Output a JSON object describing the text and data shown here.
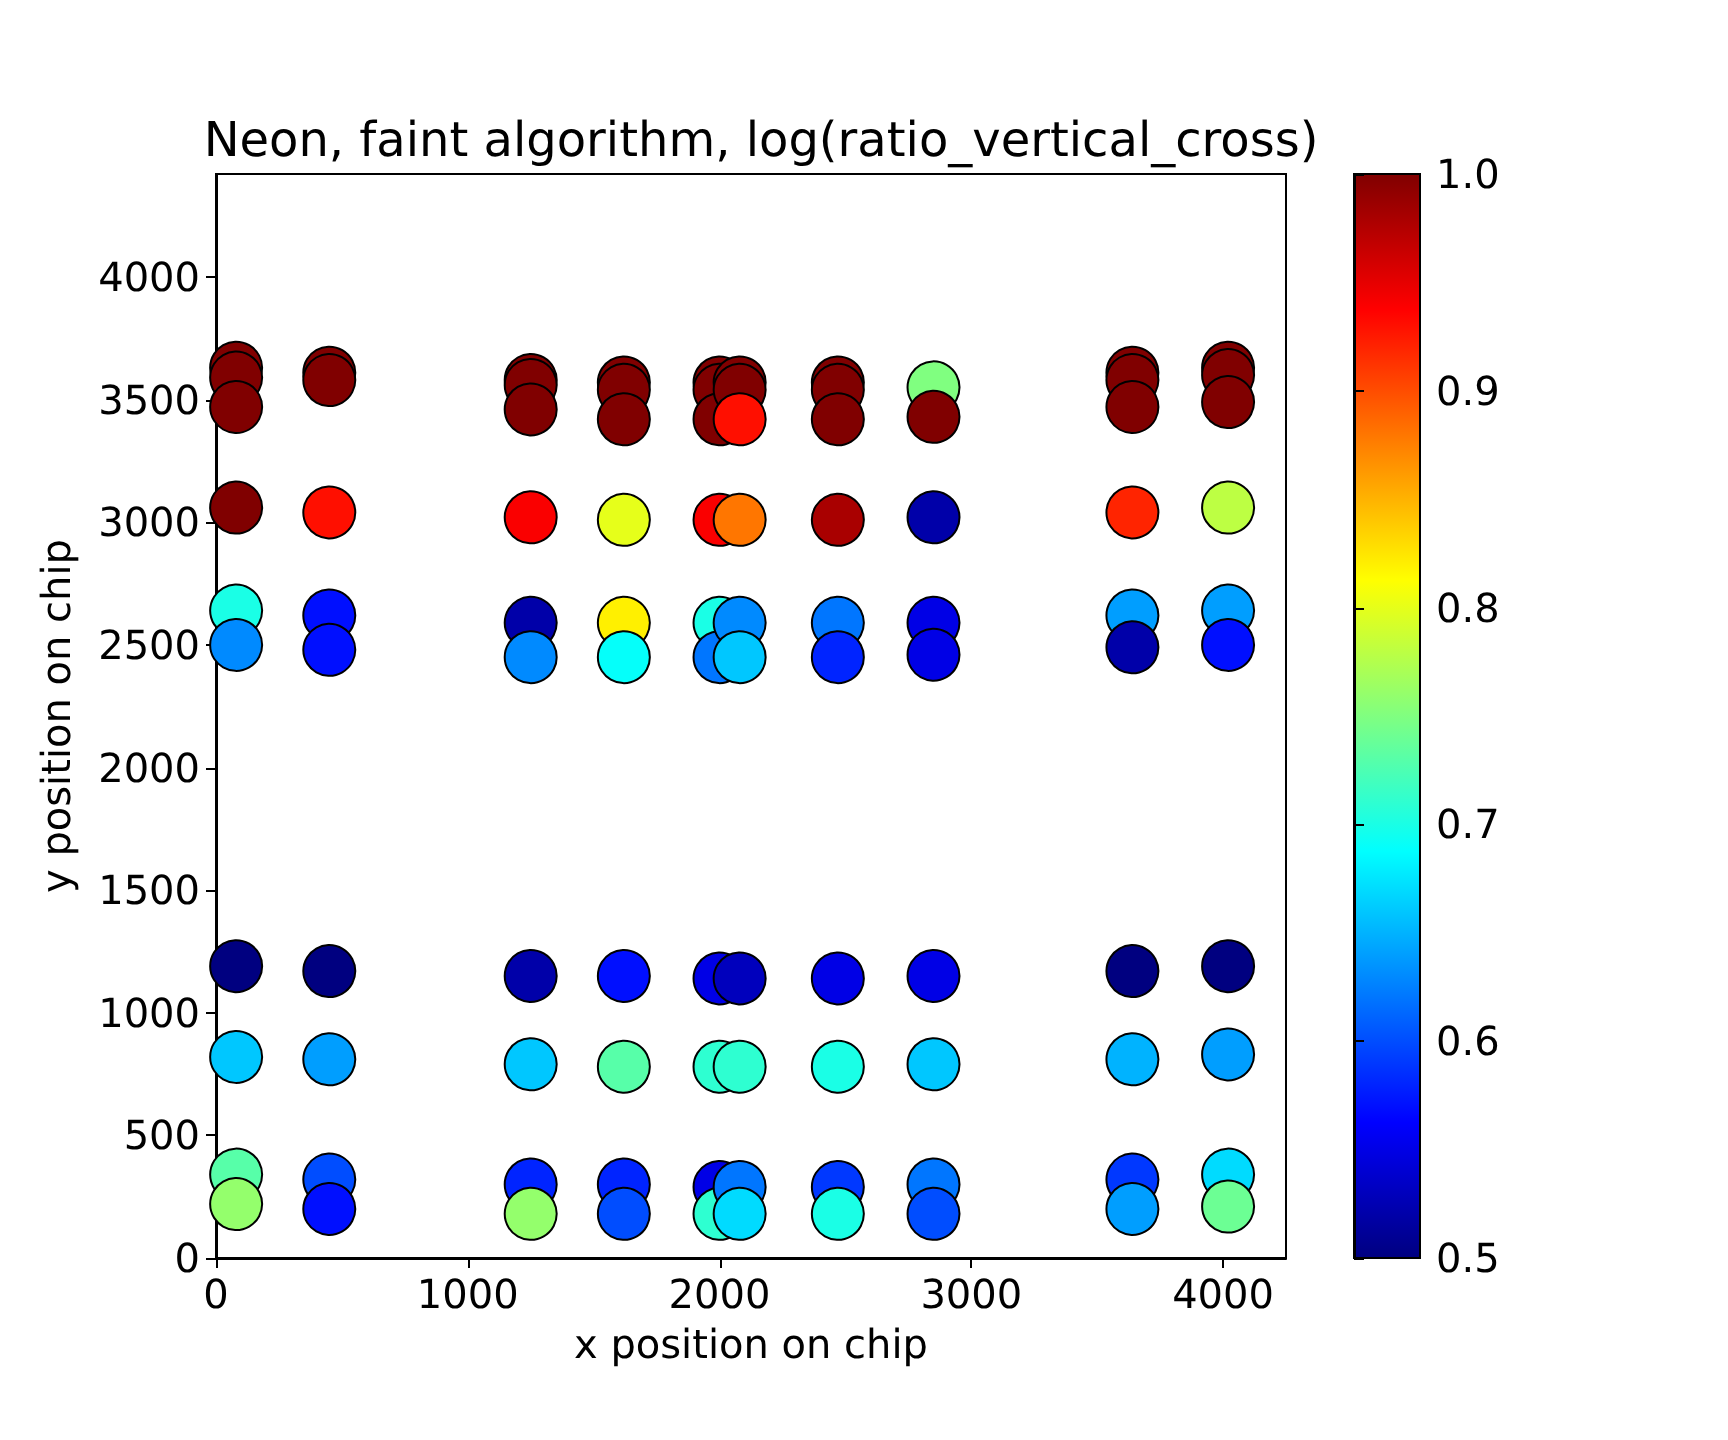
{
  "chart_data": {
    "type": "scatter",
    "title": "Neon, faint algorithm, log(ratio_vertical_cross)",
    "xlabel": "x position on chip",
    "ylabel": "y position on chip",
    "marker": "circle",
    "xlim": [
      0,
      4250
    ],
    "ylim": [
      0,
      4420
    ],
    "xticks": [
      0,
      1000,
      2000,
      3000,
      4000
    ],
    "yticks": [
      0,
      500,
      1000,
      1500,
      2000,
      2500,
      3000,
      3500,
      4000
    ],
    "clim": [
      0.5,
      1.0
    ],
    "cticks": [
      0.5,
      0.6,
      0.7,
      0.8,
      0.9,
      {
        "value": 1,
        "label": "1.0"
      }
    ],
    "x": [
      80,
      80,
      80,
      80,
      80,
      80,
      80,
      80,
      80,
      80,
      450,
      450,
      450,
      450,
      450,
      450,
      450,
      450,
      450,
      1250,
      1250,
      1250,
      1250,
      1250,
      1250,
      1250,
      1250,
      1250,
      1250,
      1620,
      1620,
      1620,
      1620,
      1620,
      1620,
      1620,
      1620,
      1620,
      1620,
      2000,
      2000,
      2000,
      2000,
      2000,
      2000,
      2000,
      2000,
      2000,
      2000,
      2080,
      2080,
      2080,
      2080,
      2080,
      2080,
      2080,
      2080,
      2080,
      2080,
      2470,
      2470,
      2470,
      2470,
      2470,
      2470,
      2470,
      2470,
      2470,
      2470,
      2850,
      2850,
      2850,
      2850,
      2850,
      2850,
      2850,
      2850,
      2850,
      3640,
      3640,
      3640,
      3640,
      3640,
      3640,
      3640,
      3640,
      3640,
      3640,
      4020,
      4020,
      4020,
      4020,
      4020,
      4020,
      4020,
      4020,
      4020,
      4020
    ],
    "values": [
      3630,
      3590,
      3470,
      3060,
      2640,
      2500,
      1190,
      820,
      340,
      220,
      3610,
      3580,
      3040,
      2620,
      2480,
      1170,
      810,
      320,
      200,
      3580,
      3560,
      3460,
      3020,
      2590,
      2450,
      1150,
      790,
      300,
      180,
      3570,
      3540,
      3420,
      3010,
      2590,
      2450,
      1150,
      780,
      300,
      180,
      3570,
      3540,
      3420,
      3010,
      2590,
      2450,
      1140,
      780,
      290,
      180,
      3570,
      3540,
      3420,
      3010,
      2590,
      2450,
      1140,
      780,
      290,
      180,
      3570,
      3540,
      3420,
      3010,
      2590,
      2450,
      1140,
      780,
      290,
      180,
      3550,
      3430,
      3020,
      2590,
      2460,
      1150,
      790,
      300,
      180,
      3610,
      3580,
      3470,
      3040,
      2620,
      2490,
      1170,
      810,
      320,
      200,
      3630,
      3600,
      3490,
      3060,
      2640,
      2500,
      1190,
      830,
      340,
      210
    ],
    "cvalues": [
      1.0,
      1.0,
      1.0,
      1.0,
      0.7,
      0.63,
      0.5,
      0.66,
      0.73,
      0.76,
      1.0,
      1.0,
      0.93,
      0.57,
      0.57,
      0.5,
      0.64,
      0.6,
      0.57,
      1.0,
      1.0,
      1.0,
      0.94,
      0.52,
      0.63,
      0.52,
      0.66,
      0.58,
      0.76,
      1.0,
      1.0,
      1.0,
      0.8,
      0.82,
      0.69,
      0.57,
      0.73,
      0.58,
      0.6,
      1.0,
      1.0,
      1.0,
      0.94,
      0.7,
      0.62,
      0.55,
      0.71,
      0.55,
      0.71,
      1.0,
      1.0,
      0.93,
      0.88,
      0.63,
      0.66,
      0.53,
      0.71,
      0.62,
      0.67,
      1.0,
      1.0,
      1.0,
      0.98,
      0.62,
      0.58,
      0.55,
      0.7,
      0.59,
      0.7,
      0.75,
      1.0,
      0.52,
      0.55,
      0.55,
      0.55,
      0.66,
      0.62,
      0.6,
      1.0,
      1.0,
      1.0,
      0.92,
      0.64,
      0.52,
      0.5,
      0.65,
      0.59,
      0.64,
      1.0,
      1.0,
      1.0,
      0.78,
      0.64,
      0.57,
      0.5,
      0.64,
      0.67,
      0.74
    ]
  }
}
